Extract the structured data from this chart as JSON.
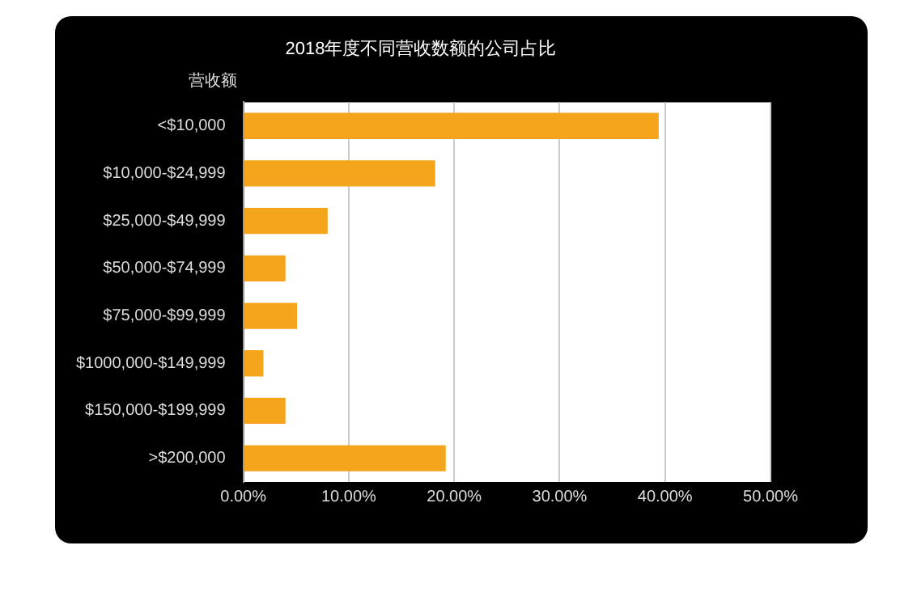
{
  "chart_data": {
    "type": "bar",
    "orientation": "horizontal",
    "title": "2018年度不同营收数额的公司占比",
    "ylabel": "营收额",
    "categories": [
      "<$10,000",
      "$10,000-$24,999",
      "$25,000-$49,999",
      "$50,000-$74,999",
      "$75,000-$99,999",
      "$1000,000-$149,999",
      "$150,000-$199,999",
      ">$200,000"
    ],
    "values": [
      39.4,
      18.2,
      8.0,
      4.0,
      5.1,
      1.9,
      4.0,
      19.2
    ],
    "color": "#f5a51c",
    "xlim": [
      0,
      50
    ],
    "xticks": [
      {
        "value": 0,
        "label": "0.00%"
      },
      {
        "value": 10,
        "label": "10.00%"
      },
      {
        "value": 20,
        "label": "20.00%"
      },
      {
        "value": 30,
        "label": "30.00%"
      },
      {
        "value": 40,
        "label": "40.00%"
      },
      {
        "value": 50,
        "label": "50.00%"
      }
    ],
    "grid": "x",
    "legend": false
  }
}
